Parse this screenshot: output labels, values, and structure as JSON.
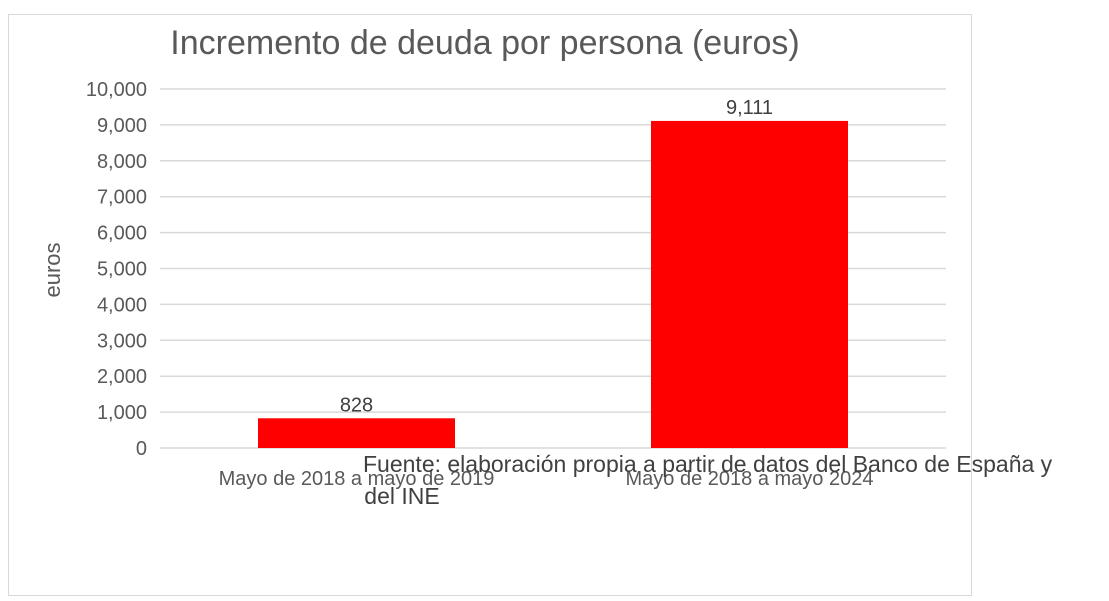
{
  "chart_data": {
    "type": "bar",
    "title": "Incremento de deuda por persona (euros)",
    "xlabel": "",
    "ylabel": "euros",
    "ylim": [
      0,
      10000
    ],
    "yticks": [
      0,
      1000,
      2000,
      3000,
      4000,
      5000,
      6000,
      7000,
      8000,
      9000,
      10000
    ],
    "ytick_labels": [
      "0",
      "1,000",
      "2,000",
      "3,000",
      "4,000",
      "5,000",
      "6,000",
      "7,000",
      "8,000",
      "9,000",
      "10,000"
    ],
    "categories": [
      "Mayo de 2018 a mayo de 2019",
      "Mayo de 2018 a mayo 2024"
    ],
    "values": [
      828,
      9111
    ],
    "value_labels": [
      "828",
      "9,111"
    ],
    "bar_color": "#ff0000",
    "grid": true,
    "source_note_lines": [
      "Fuente: elaboración propia a partir de datos del Banco de España y",
      "del INE"
    ]
  }
}
